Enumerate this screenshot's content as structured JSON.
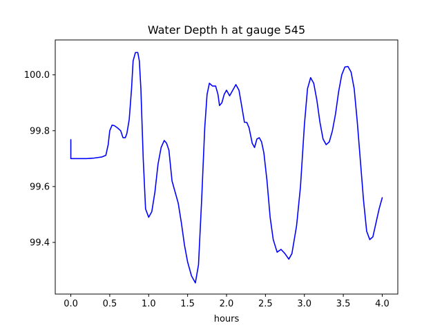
{
  "chart_data": {
    "type": "line",
    "title": "Water Depth h at gauge 545",
    "xlabel": "hours",
    "ylabel": "",
    "xlim": [
      -0.2,
      4.2
    ],
    "ylim": [
      99.215,
      100.125
    ],
    "xticks": [
      0.0,
      0.5,
      1.0,
      1.5,
      2.0,
      2.5,
      3.0,
      3.5,
      4.0
    ],
    "xtick_labels": [
      "0.0",
      "0.5",
      "1.0",
      "1.5",
      "2.0",
      "2.5",
      "3.0",
      "3.5",
      "4.0"
    ],
    "yticks": [
      99.4,
      99.6,
      99.8,
      100.0
    ],
    "ytick_labels": [
      "99.4",
      "99.6",
      "99.8",
      "100.0"
    ],
    "grid": false,
    "series": [
      {
        "color": "#0000ff",
        "x": [
          0.0,
          0.0,
          0.1,
          0.2,
          0.3,
          0.4,
          0.45,
          0.48,
          0.5,
          0.53,
          0.56,
          0.6,
          0.64,
          0.67,
          0.7,
          0.72,
          0.75,
          0.78,
          0.8,
          0.83,
          0.86,
          0.88,
          0.9,
          0.93,
          0.96,
          1.0,
          1.04,
          1.08,
          1.12,
          1.16,
          1.2,
          1.23,
          1.26,
          1.3,
          1.34,
          1.38,
          1.42,
          1.46,
          1.5,
          1.55,
          1.6,
          1.64,
          1.68,
          1.72,
          1.75,
          1.78,
          1.82,
          1.86,
          1.89,
          1.91,
          1.94,
          1.97,
          2.0,
          2.04,
          2.08,
          2.12,
          2.16,
          2.2,
          2.23,
          2.26,
          2.29,
          2.33,
          2.36,
          2.39,
          2.42,
          2.45,
          2.48,
          2.52,
          2.56,
          2.6,
          2.65,
          2.7,
          2.75,
          2.8,
          2.84,
          2.9,
          2.95,
          3.0,
          3.04,
          3.08,
          3.12,
          3.16,
          3.2,
          3.24,
          3.28,
          3.32,
          3.36,
          3.4,
          3.44,
          3.48,
          3.52,
          3.56,
          3.6,
          3.64,
          3.68,
          3.72,
          3.76,
          3.8,
          3.84,
          3.88,
          3.92,
          3.96,
          4.0
        ],
        "y": [
          99.768,
          99.7,
          99.7,
          99.7,
          99.702,
          99.706,
          99.712,
          99.75,
          99.8,
          99.82,
          99.818,
          99.81,
          99.8,
          99.775,
          99.775,
          99.79,
          99.84,
          99.95,
          100.05,
          100.08,
          100.08,
          100.05,
          99.95,
          99.7,
          99.52,
          99.49,
          99.51,
          99.58,
          99.68,
          99.74,
          99.765,
          99.755,
          99.73,
          99.62,
          99.58,
          99.54,
          99.47,
          99.39,
          99.33,
          99.28,
          99.255,
          99.32,
          99.55,
          99.81,
          99.93,
          99.97,
          99.96,
          99.96,
          99.93,
          99.89,
          99.9,
          99.93,
          99.945,
          99.925,
          99.945,
          99.965,
          99.945,
          99.88,
          99.83,
          99.83,
          99.81,
          99.755,
          99.74,
          99.77,
          99.775,
          99.76,
          99.72,
          99.62,
          99.49,
          99.41,
          99.365,
          99.375,
          99.36,
          99.34,
          99.36,
          99.46,
          99.6,
          99.82,
          99.95,
          99.99,
          99.97,
          99.91,
          99.83,
          99.77,
          99.75,
          99.76,
          99.8,
          99.86,
          99.94,
          100.0,
          100.028,
          100.03,
          100.01,
          99.95,
          99.83,
          99.69,
          99.55,
          99.44,
          99.41,
          99.42,
          99.47,
          99.52,
          99.56
        ]
      }
    ]
  }
}
